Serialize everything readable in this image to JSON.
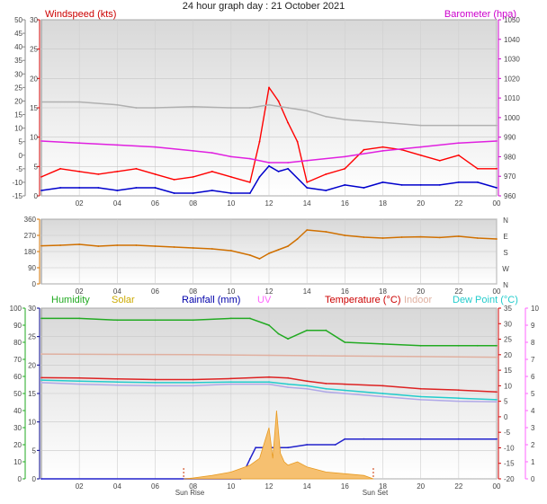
{
  "title": "24 hour graph day : 21 October 2021",
  "time_labels": [
    "02",
    "04",
    "06",
    "08",
    "10",
    "12",
    "14",
    "16",
    "18",
    "20",
    "22",
    "00"
  ],
  "sun_labels": {
    "rise": "Sun Rise",
    "set": "Sun Set"
  },
  "chart_data": [
    {
      "type": "line",
      "panel": "wind-barometer",
      "legend_left": "Windspeed (kts)",
      "legend_right": "Barometer (hpa)",
      "left_axis": {
        "min": -15,
        "max": 50,
        "ticks": [
          -15,
          -10,
          -5,
          0,
          5,
          10,
          15,
          20,
          25,
          30,
          35,
          40,
          45,
          50
        ]
      },
      "inner_axis": {
        "min": 0,
        "max": 30,
        "ticks": [
          0,
          5,
          10,
          15,
          20,
          25,
          30
        ]
      },
      "right_axis": {
        "min": 960,
        "max": 1050,
        "ticks": [
          960,
          970,
          980,
          990,
          1000,
          1010,
          1020,
          1030,
          1040,
          1050
        ]
      },
      "series": [
        {
          "name": "Windspeed (kts)",
          "color": "#ff0000",
          "axis": "left",
          "x": [
            0,
            1,
            2,
            3,
            4,
            5,
            6,
            7,
            8,
            9,
            10,
            11,
            11.5,
            12,
            12.5,
            13,
            13.5,
            14,
            15,
            16,
            17,
            18,
            19,
            20,
            21,
            22,
            23,
            24
          ],
          "y": [
            -8,
            -5,
            -6,
            -7,
            -6,
            -5,
            -7,
            -9,
            -8,
            -6,
            -8,
            -10,
            5,
            25,
            20,
            12,
            5,
            -10,
            -7,
            -5,
            2,
            3,
            2,
            0,
            -2,
            0,
            -5,
            -5
          ]
        },
        {
          "name": "Gust",
          "color": "#0000cc",
          "axis": "left",
          "x": [
            0,
            1,
            2,
            3,
            4,
            5,
            6,
            7,
            8,
            9,
            10,
            11,
            11.5,
            12,
            12.5,
            13,
            14,
            15,
            16,
            17,
            18,
            19,
            20,
            21,
            22,
            23,
            24
          ],
          "y": [
            -13,
            -12,
            -12,
            -12,
            -13,
            -12,
            -12,
            -14,
            -14,
            -13,
            -14,
            -14,
            -8,
            -4,
            -6,
            -5,
            -12,
            -13,
            -11,
            -12,
            -10,
            -11,
            -11,
            -11,
            -10,
            -10,
            -12
          ]
        },
        {
          "name": "Barometer (hpa)",
          "color": "#e020e0",
          "axis": "right",
          "x": [
            0,
            2,
            4,
            6,
            8,
            9,
            10,
            11,
            12,
            13,
            14,
            16,
            18,
            20,
            22,
            24
          ],
          "y": [
            988,
            987,
            986,
            985,
            983,
            982,
            980,
            979,
            977,
            977,
            978,
            980,
            983,
            985,
            987,
            988
          ]
        },
        {
          "name": "Background",
          "color": "#b0b0b0",
          "axis": "inner",
          "x": [
            0,
            2,
            4,
            5,
            6,
            8,
            10,
            11,
            12,
            13,
            14,
            15,
            16,
            18,
            20,
            22,
            24
          ],
          "y": [
            16,
            16,
            15.5,
            15,
            15,
            15.2,
            15,
            15,
            15.5,
            15,
            14.5,
            13.5,
            13,
            12.5,
            12,
            12,
            12
          ]
        }
      ]
    },
    {
      "type": "line",
      "panel": "wind-direction",
      "left_axis": {
        "min": 0,
        "max": 360,
        "ticks": [
          0,
          90,
          180,
          270,
          360
        ]
      },
      "right_labels": [
        "N",
        "W",
        "S",
        "E",
        "N"
      ],
      "series": [
        {
          "name": "Direction",
          "color": "#d07000",
          "x": [
            0,
            1,
            2,
            3,
            4,
            5,
            6,
            7,
            8,
            9,
            10,
            11,
            11.5,
            12,
            12.5,
            13,
            13.5,
            14,
            15,
            16,
            17,
            18,
            19,
            20,
            21,
            22,
            23,
            24
          ],
          "y": [
            212,
            215,
            220,
            210,
            215,
            215,
            210,
            205,
            200,
            195,
            185,
            160,
            140,
            170,
            190,
            210,
            250,
            300,
            290,
            270,
            260,
            255,
            260,
            262,
            258,
            265,
            255,
            250
          ]
        }
      ]
    },
    {
      "type": "line",
      "panel": "temperature-humidity",
      "legend": [
        "Humidity",
        "Solar",
        "Rainfall (mm)",
        "UV",
        "Temperature (°C)",
        "Indoor",
        "Dew Point (°C)"
      ],
      "legend_colors": [
        "#22aa22",
        "#ccaa00",
        "#0000aa",
        "#ff66ff",
        "#cc0000",
        "#e0b0a0",
        "#22cccc"
      ],
      "humidity_axis": {
        "min": 0,
        "max": 100,
        "ticks": [
          0,
          10,
          20,
          30,
          40,
          50,
          60,
          70,
          80,
          90,
          100
        ]
      },
      "rain_axis": {
        "min": 0,
        "max": 30,
        "ticks": [
          0,
          5,
          10,
          15,
          20,
          25,
          30
        ]
      },
      "temp_axis": {
        "min": -20,
        "max": 35,
        "ticks": [
          -20,
          -15,
          -10,
          -5,
          0,
          5,
          10,
          15,
          20,
          25,
          30,
          35
        ]
      },
      "uv_axis": {
        "min": 0,
        "max": 10,
        "ticks": [
          0,
          1,
          2,
          3,
          4,
          5,
          6,
          7,
          8,
          9,
          10
        ]
      },
      "series": [
        {
          "name": "Humidity",
          "color": "#22aa22",
          "axis": "humidity",
          "x": [
            0,
            2,
            4,
            6,
            8,
            10,
            11,
            12,
            12.5,
            13,
            14,
            15,
            16,
            18,
            20,
            22,
            23,
            24
          ],
          "y": [
            94,
            94,
            93,
            93,
            93,
            94,
            94,
            90,
            85,
            82,
            87,
            87,
            80,
            79,
            78,
            78,
            78,
            78
          ]
        },
        {
          "name": "Indoor",
          "color": "#e0b0a0",
          "axis": "temp",
          "x": [
            0,
            4,
            8,
            12,
            16,
            20,
            24
          ],
          "y": [
            20.2,
            20.1,
            20,
            19.8,
            19.6,
            19.4,
            19.2
          ]
        },
        {
          "name": "Temperature (°C)",
          "color": "#dd2222",
          "axis": "temp",
          "x": [
            0,
            2,
            4,
            6,
            8,
            10,
            12,
            13,
            14,
            15,
            16,
            18,
            20,
            22,
            24
          ],
          "y": [
            12.6,
            12.5,
            12.2,
            12,
            12,
            12.3,
            12.8,
            12.5,
            11.5,
            10.7,
            10.5,
            10,
            9,
            8.6,
            8
          ]
        },
        {
          "name": "Dew Point (°C)",
          "color": "#22cccc",
          "axis": "temp",
          "x": [
            0,
            2,
            4,
            6,
            8,
            10,
            12,
            13,
            14,
            15,
            16,
            18,
            20,
            22,
            24
          ],
          "y": [
            11.8,
            11.5,
            11.2,
            11,
            11,
            11.2,
            11.2,
            10.5,
            10,
            9,
            8.5,
            7.5,
            6.5,
            6,
            5.5
          ]
        },
        {
          "name": "Temperature low",
          "color": "#b0a8e8",
          "axis": "temp",
          "x": [
            0,
            2,
            4,
            6,
            8,
            10,
            12,
            13,
            14,
            15,
            16,
            18,
            20,
            22,
            24
          ],
          "y": [
            11,
            10.5,
            10.2,
            10,
            10,
            10.5,
            10.5,
            9.5,
            9,
            8,
            7.5,
            6.5,
            5.5,
            5,
            4.8
          ]
        },
        {
          "name": "Rainfall (mm)",
          "color": "#2222cc",
          "axis": "rain",
          "x": [
            0,
            10.5,
            11,
            11.3,
            11.8,
            12,
            13,
            14,
            15.5,
            16,
            17,
            18,
            20,
            22,
            24
          ],
          "y": [
            0,
            0,
            3.5,
            5.5,
            5.5,
            5.5,
            5.5,
            6,
            6,
            7,
            7,
            7,
            7,
            7,
            7
          ]
        },
        {
          "name": "Solar",
          "color": "#f0b040",
          "axis": "humidity",
          "x": [
            7.5,
            8,
            9,
            10,
            10.5,
            11,
            11.5,
            12,
            12.2,
            12.4,
            12.6,
            12.8,
            13,
            13.5,
            14,
            15,
            16,
            17,
            17.5
          ],
          "y": [
            0,
            0.5,
            2,
            4,
            6,
            8,
            12,
            30,
            12,
            40,
            15,
            10,
            8,
            10,
            7,
            4,
            3,
            2,
            0
          ]
        }
      ]
    }
  ]
}
